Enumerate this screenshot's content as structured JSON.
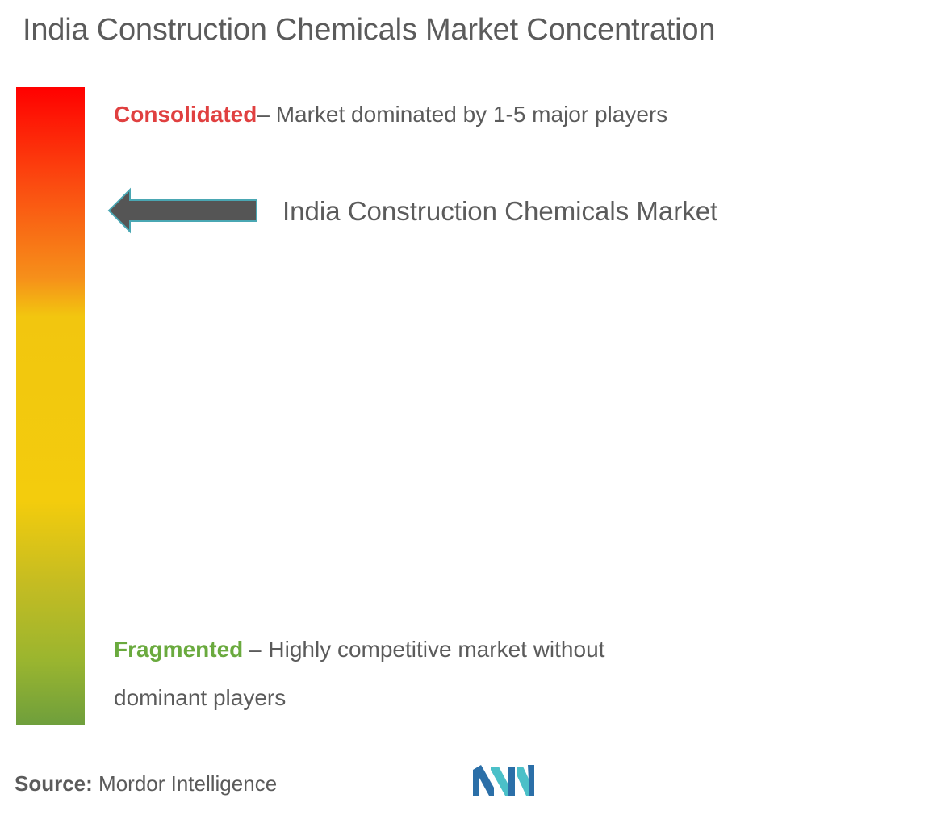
{
  "chart_data": {
    "type": "concentration-scale",
    "title": "India Construction Chemicals Market Concentration",
    "scale": {
      "top": {
        "keyword": "Consolidated",
        "description": "– Market dominated by 1-5 major players",
        "color": "#e04040"
      },
      "bottom": {
        "keyword": "Fragmented",
        "description": " – Highly competitive market without dominant players",
        "color": "#6aaa3e"
      },
      "gradient_colors": [
        "#ff0000",
        "#f6901a",
        "#f3cc0d",
        "#6f9f3c"
      ]
    },
    "marker": {
      "label": "India Construction Chemicals Market",
      "position": "near consolidated end",
      "color": "#555555"
    }
  },
  "footer": {
    "source_key": "Source:",
    "source_value": " Mordor Intelligence",
    "logo_icon": "mordor-intelligence-logo-icon",
    "logo_color": "#3fb8c8"
  }
}
